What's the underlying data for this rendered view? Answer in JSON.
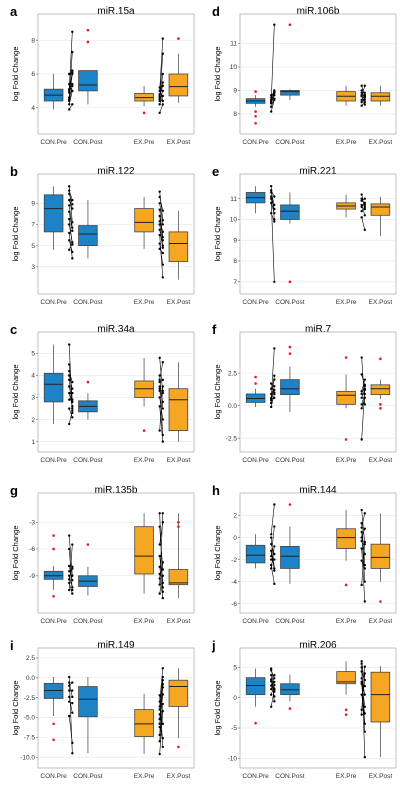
{
  "colors": {
    "control": "#1c84c6",
    "exercise": "#f5a623",
    "outlier": "#e41a1c",
    "paired_line": "#000000",
    "grid": "#e6e6e6"
  },
  "y_axis_label": "log Fold Change",
  "groups": [
    "CON.Pre",
    "CON.Post",
    "EX.Pre",
    "EX.Post"
  ],
  "chart_data": [
    {
      "type": "box",
      "label": "a",
      "title": "miR.15a",
      "ylim": [
        2.8,
        9.2
      ],
      "yticks": [
        4,
        6,
        8
      ],
      "boxes": [
        {
          "q1": 4.4,
          "med": 4.75,
          "q3": 5.1,
          "lo": 3.9,
          "hi": 6.0,
          "out": []
        },
        {
          "q1": 5.0,
          "med": 5.35,
          "q3": 6.2,
          "lo": 4.2,
          "hi": 6.2,
          "out": [
            8.6,
            7.9
          ]
        },
        {
          "q1": 4.4,
          "med": 4.6,
          "q3": 4.85,
          "lo": 4.1,
          "hi": 5.3,
          "out": [
            3.7
          ]
        },
        {
          "q1": 4.7,
          "med": 5.25,
          "q3": 6.0,
          "lo": 4.3,
          "hi": 7.2,
          "out": [
            8.1
          ]
        }
      ],
      "pairs_con": [
        [
          3.9,
          4.2
        ],
        [
          4.2,
          5.0
        ],
        [
          4.4,
          5.3
        ],
        [
          4.5,
          6.0
        ],
        [
          4.6,
          7.3
        ],
        [
          4.9,
          6.2
        ],
        [
          5.0,
          5.4
        ],
        [
          5.1,
          8.5
        ],
        [
          5.4,
          5.0
        ],
        [
          6.0,
          6.1
        ]
      ],
      "pairs_ex": [
        [
          3.7,
          4.2
        ],
        [
          4.2,
          4.7
        ],
        [
          4.4,
          5.0
        ],
        [
          4.5,
          7.2
        ],
        [
          4.6,
          6.0
        ],
        [
          4.7,
          5.3
        ],
        [
          4.8,
          5.5
        ],
        [
          5.0,
          8.1
        ],
        [
          5.2,
          4.4
        ]
      ]
    },
    {
      "type": "box",
      "label": "d",
      "title": "miR.106b",
      "ylim": [
        7.4,
        12.0
      ],
      "yticks": [
        8,
        9,
        10,
        11
      ],
      "boxes": [
        {
          "q1": 8.45,
          "med": 8.55,
          "q3": 8.65,
          "lo": 8.3,
          "hi": 8.8,
          "out": [
            8.1,
            7.6,
            7.9,
            8.95
          ]
        },
        {
          "q1": 8.8,
          "med": 8.95,
          "q3": 9.0,
          "lo": 8.6,
          "hi": 9.05,
          "out": [
            11.8
          ]
        },
        {
          "q1": 8.55,
          "med": 8.75,
          "q3": 8.95,
          "lo": 8.35,
          "hi": 9.2,
          "out": []
        },
        {
          "q1": 8.55,
          "med": 8.75,
          "q3": 8.9,
          "lo": 8.35,
          "hi": 9.2,
          "out": []
        }
      ],
      "pairs_con": [
        [
          8.1,
          8.6
        ],
        [
          8.3,
          8.65
        ],
        [
          8.45,
          8.8
        ],
        [
          8.5,
          8.9
        ],
        [
          8.55,
          11.8
        ],
        [
          8.6,
          8.95
        ],
        [
          8.7,
          9.0
        ],
        [
          8.8,
          8.9
        ]
      ],
      "pairs_ex": [
        [
          8.35,
          8.5
        ],
        [
          8.5,
          8.7
        ],
        [
          8.6,
          8.8
        ],
        [
          8.75,
          9.2
        ],
        [
          8.8,
          8.4
        ],
        [
          8.9,
          8.9
        ],
        [
          9.0,
          8.6
        ],
        [
          9.2,
          8.75
        ]
      ]
    },
    {
      "type": "box",
      "label": "b",
      "title": "miR.122",
      "ylim": [
        1.0,
        11.2
      ],
      "yticks": [
        3,
        5,
        7,
        9
      ],
      "boxes": [
        {
          "q1": 6.3,
          "med": 8.5,
          "q3": 9.8,
          "lo": 4.6,
          "hi": 10.6,
          "out": []
        },
        {
          "q1": 5.0,
          "med": 6.1,
          "q3": 6.9,
          "lo": 3.8,
          "hi": 9.3,
          "out": []
        },
        {
          "q1": 6.3,
          "med": 7.2,
          "q3": 8.5,
          "lo": 4.7,
          "hi": 9.6,
          "out": []
        },
        {
          "q1": 3.5,
          "med": 5.2,
          "q3": 6.3,
          "lo": 1.8,
          "hi": 8.3,
          "out": []
        }
      ],
      "pairs_con": [
        [
          4.6,
          5.3
        ],
        [
          5.5,
          4.4
        ],
        [
          6.2,
          3.8
        ],
        [
          7.0,
          5.3
        ],
        [
          7.5,
          5.1
        ],
        [
          8.2,
          6.4
        ],
        [
          8.8,
          6.7
        ],
        [
          9.3,
          8.5
        ],
        [
          9.9,
          8.9
        ],
        [
          10.2,
          9.3
        ],
        [
          10.6,
          7.2
        ]
      ],
      "pairs_ex": [
        [
          4.7,
          4.3
        ],
        [
          5.2,
          3.2
        ],
        [
          6.0,
          2.0
        ],
        [
          6.5,
          4.8
        ],
        [
          7.0,
          5.0
        ],
        [
          7.3,
          6.3
        ],
        [
          7.8,
          5.5
        ],
        [
          8.4,
          5.8
        ],
        [
          9.0,
          7.0
        ],
        [
          9.6,
          8.3
        ],
        [
          10.1,
          7.4
        ]
      ]
    },
    {
      "type": "box",
      "label": "e",
      "title": "miR.221",
      "ylim": [
        6.7,
        11.9
      ],
      "yticks": [
        7,
        8,
        9,
        10,
        11
      ],
      "boxes": [
        {
          "q1": 10.8,
          "med": 11.05,
          "q3": 11.3,
          "lo": 10.3,
          "hi": 11.6,
          "out": []
        },
        {
          "q1": 10.0,
          "med": 10.4,
          "q3": 10.7,
          "lo": 9.8,
          "hi": 11.3,
          "out": [
            7.0
          ]
        },
        {
          "q1": 10.5,
          "med": 10.65,
          "q3": 10.8,
          "lo": 10.1,
          "hi": 11.2,
          "out": []
        },
        {
          "q1": 10.2,
          "med": 10.6,
          "q3": 10.75,
          "lo": 9.2,
          "hi": 11.1,
          "out": []
        }
      ],
      "pairs_con": [
        [
          10.3,
          9.9
        ],
        [
          10.8,
          10.3
        ],
        [
          11.0,
          7.0
        ],
        [
          11.1,
          10.5
        ],
        [
          11.3,
          10.7
        ],
        [
          11.4,
          11.1
        ],
        [
          11.6,
          10.0
        ]
      ],
      "pairs_ex": [
        [
          10.1,
          9.5
        ],
        [
          10.4,
          10.6
        ],
        [
          10.6,
          10.8
        ],
        [
          10.7,
          10.2
        ],
        [
          10.9,
          11.0
        ],
        [
          11.0,
          10.7
        ],
        [
          11.2,
          10.5
        ]
      ]
    },
    {
      "type": "box",
      "label": "c",
      "title": "miR.34a",
      "ylim": [
        0.8,
        5.7
      ],
      "yticks": [
        1,
        2,
        3,
        4,
        5
      ],
      "boxes": [
        {
          "q1": 2.8,
          "med": 3.6,
          "q3": 4.1,
          "lo": 1.8,
          "hi": 5.4,
          "out": []
        },
        {
          "q1": 2.35,
          "med": 2.6,
          "q3": 2.85,
          "lo": 2.0,
          "hi": 3.2,
          "out": [
            3.7
          ]
        },
        {
          "q1": 3.0,
          "med": 3.4,
          "q3": 3.75,
          "lo": 2.6,
          "hi": 4.8,
          "out": [
            1.5
          ]
        },
        {
          "q1": 1.5,
          "med": 2.9,
          "q3": 3.4,
          "lo": 1.0,
          "hi": 4.6,
          "out": []
        }
      ],
      "pairs_con": [
        [
          1.8,
          2.4
        ],
        [
          2.5,
          2.1
        ],
        [
          2.9,
          3.2
        ],
        [
          3.2,
          2.6
        ],
        [
          3.5,
          2.8
        ],
        [
          3.8,
          2.5
        ],
        [
          4.0,
          3.4
        ],
        [
          4.2,
          3.7
        ],
        [
          4.5,
          2.9
        ],
        [
          5.4,
          2.3
        ]
      ],
      "pairs_ex": [
        [
          1.5,
          3.5
        ],
        [
          2.6,
          1.0
        ],
        [
          3.0,
          2.0
        ],
        [
          3.3,
          3.3
        ],
        [
          3.4,
          2.8
        ],
        [
          3.5,
          1.3
        ],
        [
          3.7,
          3.8
        ],
        [
          3.8,
          4.6
        ],
        [
          4.0,
          2.5
        ],
        [
          4.8,
          3.2
        ]
      ]
    },
    {
      "type": "box",
      "label": "f",
      "title": "miR.7",
      "ylim": [
        -3.1,
        5.2
      ],
      "yticks": [
        -2.5,
        0.0,
        2.5
      ],
      "boxes": [
        {
          "q1": 0.25,
          "med": 0.55,
          "q3": 0.9,
          "lo": -0.1,
          "hi": 1.3,
          "out": [
            2.2,
            1.7
          ]
        },
        {
          "q1": 0.85,
          "med": 1.3,
          "q3": 2.0,
          "lo": -0.5,
          "hi": 3.0,
          "out": [
            4.5,
            4.0
          ]
        },
        {
          "q1": 0.1,
          "med": 0.8,
          "q3": 1.1,
          "lo": -0.2,
          "hi": 2.4,
          "out": [
            3.7,
            -2.6
          ]
        },
        {
          "q1": 0.85,
          "med": 1.3,
          "q3": 1.6,
          "lo": 0.5,
          "hi": 2.0,
          "out": [
            3.6,
            -0.2,
            0.1
          ]
        }
      ],
      "pairs_con": [
        [
          -0.1,
          0.9
        ],
        [
          0.2,
          1.5
        ],
        [
          0.4,
          2.3
        ],
        [
          0.5,
          0.6
        ],
        [
          0.6,
          4.4
        ],
        [
          0.9,
          1.2
        ],
        [
          1.3,
          2.0
        ],
        [
          1.7,
          1.0
        ]
      ],
      "pairs_ex": [
        [
          -2.6,
          1.3
        ],
        [
          -0.2,
          0.6
        ],
        [
          0.1,
          0.9
        ],
        [
          0.6,
          1.2
        ],
        [
          0.9,
          1.6
        ],
        [
          1.1,
          2.0
        ],
        [
          2.4,
          1.5
        ],
        [
          3.7,
          0.1
        ]
      ]
    },
    {
      "type": "box",
      "label": "g",
      "title": "miR.135b",
      "ylim": [
        -12.5,
        -0.4
      ],
      "yticks": [
        -3,
        -6,
        -9
      ],
      "boxes": [
        {
          "q1": -9.4,
          "med": -9.0,
          "q3": -8.5,
          "lo": -10.6,
          "hi": -7.9,
          "out": [
            -4.5,
            -6.0,
            -11.3
          ]
        },
        {
          "q1": -10.2,
          "med": -9.6,
          "q3": -9.0,
          "lo": -11.2,
          "hi": -8.0,
          "out": [
            -5.5
          ]
        },
        {
          "q1": -8.8,
          "med": -6.8,
          "q3": -3.5,
          "lo": -11.0,
          "hi": -2.0,
          "out": []
        },
        {
          "q1": -10.0,
          "med": -9.8,
          "q3": -8.3,
          "lo": -11.5,
          "hi": -2.0,
          "out": [
            -3.0,
            -3.5
          ]
        }
      ],
      "pairs_con": [
        [
          -10.6,
          -5.5
        ],
        [
          -9.8,
          -11.0
        ],
        [
          -9.4,
          -8.0
        ],
        [
          -9.0,
          -10.3
        ],
        [
          -8.5,
          -8.2
        ],
        [
          -7.9,
          -9.5
        ],
        [
          -6.0,
          -10.6
        ],
        [
          -4.5,
          -9.0
        ]
      ],
      "pairs_ex": [
        [
          -11.0,
          -9.0
        ],
        [
          -10.0,
          -2.0
        ],
        [
          -9.3,
          -7.5
        ],
        [
          -8.8,
          -11.5
        ],
        [
          -8.0,
          -10.3
        ],
        [
          -6.8,
          -9.8
        ],
        [
          -5.5,
          -3.0
        ],
        [
          -3.5,
          -8.3
        ],
        [
          -2.0,
          -10.8
        ]
      ]
    },
    {
      "type": "box",
      "label": "h",
      "title": "miR.144",
      "ylim": [
        -6.3,
        3.5
      ],
      "yticks": [
        2,
        0,
        -2,
        -4,
        -6
      ],
      "boxes": [
        {
          "q1": -2.3,
          "med": -1.6,
          "q3": -0.7,
          "lo": -2.8,
          "hi": 0.3,
          "out": []
        },
        {
          "q1": -2.8,
          "med": -1.7,
          "q3": -0.8,
          "lo": -4.2,
          "hi": 1.0,
          "out": [
            3.0
          ]
        },
        {
          "q1": -1.0,
          "med": 0.0,
          "q3": 0.8,
          "lo": -2.1,
          "hi": 2.5,
          "out": [
            -4.3
          ]
        },
        {
          "q1": -2.8,
          "med": -1.8,
          "q3": -0.6,
          "lo": -4.0,
          "hi": 2.2,
          "out": [
            -5.8
          ]
        }
      ],
      "pairs_con": [
        [
          -2.8,
          -0.8
        ],
        [
          -2.5,
          -4.2
        ],
        [
          -2.0,
          -2.0
        ],
        [
          -1.7,
          1.0
        ],
        [
          -1.2,
          -3.0
        ],
        [
          -0.6,
          -1.5
        ],
        [
          0.0,
          -2.8
        ],
        [
          0.3,
          3.0
        ]
      ],
      "pairs_ex": [
        [
          -4.3,
          -0.4
        ],
        [
          -2.1,
          -2.8
        ],
        [
          -1.0,
          -5.8
        ],
        [
          -0.3,
          -1.5
        ],
        [
          0.0,
          0.8
        ],
        [
          0.5,
          -4.0
        ],
        [
          0.9,
          2.2
        ],
        [
          1.3,
          -2.5
        ],
        [
          2.5,
          -0.6
        ]
      ]
    },
    {
      "type": "box",
      "label": "i",
      "title": "miR.149",
      "ylim": [
        -10.6,
        3.0
      ],
      "yticks": [
        2.5,
        0.0,
        -2.5,
        -5.0,
        -7.5,
        -10.0
      ],
      "boxes": [
        {
          "q1": -2.6,
          "med": -1.6,
          "q3": -0.7,
          "lo": -4.8,
          "hi": 0.1,
          "out": [
            -5.8,
            -7.8
          ]
        },
        {
          "q1": -4.9,
          "med": -2.7,
          "q3": -1.1,
          "lo": -9.5,
          "hi": 0.1,
          "out": []
        },
        {
          "q1": -7.4,
          "med": -5.8,
          "q3": -4.0,
          "lo": -9.6,
          "hi": -2.0,
          "out": []
        },
        {
          "q1": -3.6,
          "med": -1.1,
          "q3": -0.3,
          "lo": -7.6,
          "hi": 1.2,
          "out": [
            -8.7
          ]
        }
      ],
      "pairs_con": [
        [
          -4.8,
          -8.2
        ],
        [
          -3.0,
          -3.2
        ],
        [
          -2.4,
          -4.4
        ],
        [
          -1.6,
          -1.6
        ],
        [
          -1.0,
          -0.6
        ],
        [
          -0.6,
          -2.4
        ],
        [
          0.1,
          -9.5
        ]
      ],
      "pairs_ex": [
        [
          -9.6,
          -4.2
        ],
        [
          -8.0,
          -3.3
        ],
        [
          -7.2,
          -0.8
        ],
        [
          -6.2,
          -7.6
        ],
        [
          -5.8,
          -2.1
        ],
        [
          -5.2,
          -0.3
        ],
        [
          -4.6,
          -5.8
        ],
        [
          -4.0,
          -1.2
        ],
        [
          -3.6,
          0.1
        ],
        [
          -3.0,
          1.2
        ],
        [
          -2.2,
          -8.7
        ]
      ]
    },
    {
      "type": "box",
      "label": "j",
      "title": "miR.206",
      "ylim": [
        -10.6,
        7.2
      ],
      "yticks": [
        5,
        0,
        -5,
        -10
      ],
      "boxes": [
        {
          "q1": 0.5,
          "med": 2.0,
          "q3": 3.3,
          "lo": -1.5,
          "hi": 4.8,
          "out": [
            -4.2
          ]
        },
        {
          "q1": 0.5,
          "med": 1.3,
          "q3": 2.3,
          "lo": -0.6,
          "hi": 3.8,
          "out": [
            -1.8
          ]
        },
        {
          "q1": 2.3,
          "med": 2.6,
          "q3": 4.3,
          "lo": 0.5,
          "hi": 6.0,
          "out": [
            -2.0,
            -2.8
          ]
        },
        {
          "q1": -4.0,
          "med": 0.5,
          "q3": 4.2,
          "lo": -9.8,
          "hi": 5.2,
          "out": []
        }
      ],
      "pairs_con": [
        [
          -1.5,
          1.3
        ],
        [
          0.5,
          2.1
        ],
        [
          1.4,
          3.7
        ],
        [
          2.0,
          2.6
        ],
        [
          2.7,
          0.2
        ],
        [
          3.0,
          1.0
        ],
        [
          3.7,
          -0.6
        ],
        [
          4.5,
          3.2
        ],
        [
          4.8,
          1.5
        ]
      ],
      "pairs_ex": [
        [
          -2.8,
          5.1
        ],
        [
          -2.0,
          4.0
        ],
        [
          0.5,
          -2.6
        ],
        [
          2.3,
          -4.3
        ],
        [
          2.6,
          -1.5
        ],
        [
          3.2,
          0.5
        ],
        [
          4.3,
          2.9
        ],
        [
          5.0,
          -9.8
        ],
        [
          5.6,
          -5.6
        ],
        [
          6.0,
          1.9
        ]
      ]
    }
  ]
}
